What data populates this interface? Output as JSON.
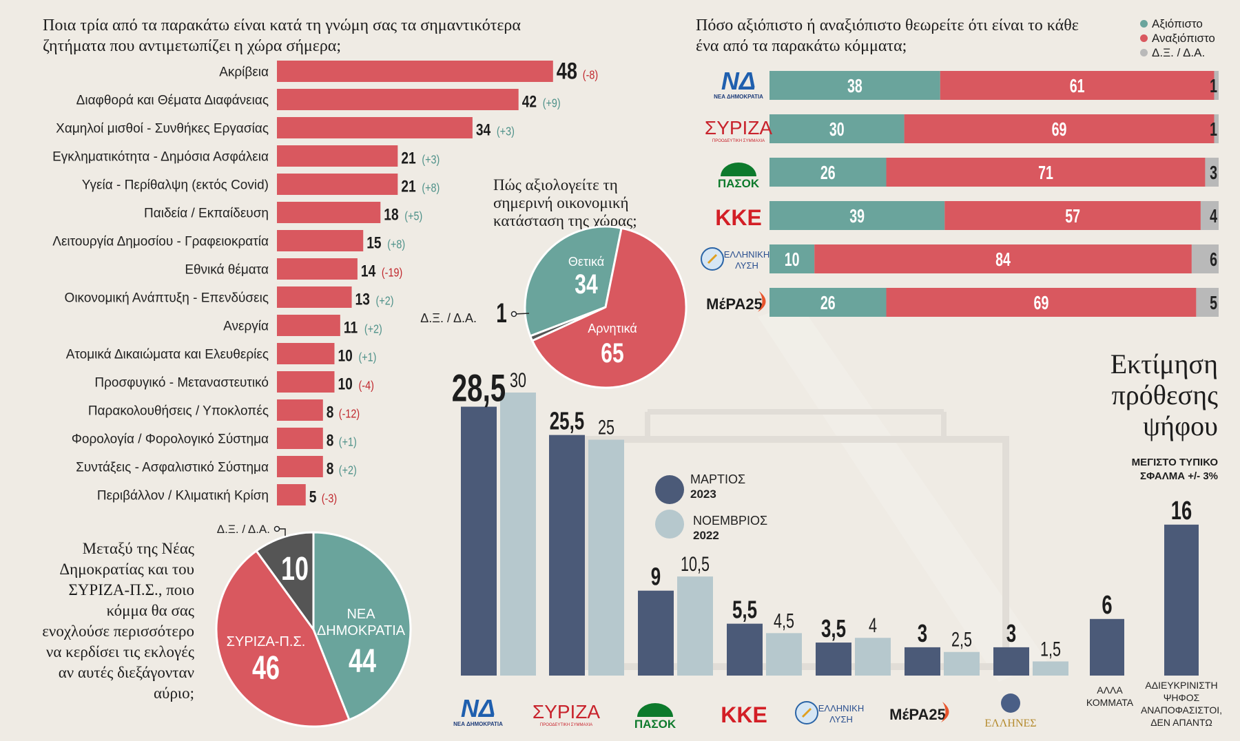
{
  "colors": {
    "red": "#d9585f",
    "teal": "#6aa49c",
    "grey": "#b9b9b9",
    "navy": "#4b5a78",
    "lightblue": "#b6c8cd",
    "dark": "#555555",
    "green_delta": "#4e9189",
    "red_delta": "#c0272d"
  },
  "issues": {
    "title": "Ποια τρία από τα παρακάτω είναι κατά τη γνώμη σας τα σημαντικότερα ζητήματα που αντιμετωπίζει η χώρα σήμερα;",
    "chart_data": {
      "type": "bar",
      "orientation": "horizontal",
      "categories": [
        "Ακρίβεια",
        "Διαφθορά και Θέματα Διαφάνειας",
        "Χαμηλοί μισθοί - Συνθήκες Εργασίας",
        "Εγκληματικότητα - Δημόσια Ασφάλεια",
        "Υγεία - Περίθαλψη (εκτός Covid)",
        "Παιδεία / Εκπαίδευση",
        "Λειτουργία Δημοσίου - Γραφειοκρατία",
        "Εθνικά θέματα",
        "Οικονομική Ανάπτυξη - Επενδύσεις",
        "Ανεργία",
        "Ατομικά Δικαιώματα και Ελευθερίες",
        "Προσφυγικό - Μεταναστευτικό",
        "Παρακολουθήσεις / Υποκλοπές",
        "Φορολογία / Φορολογικό Σύστημα",
        "Συντάξεις - Ασφαλιστικό Σύστημα",
        "Περιβάλλον / Κλιματική Κρίση"
      ],
      "values": [
        48,
        42,
        34,
        21,
        21,
        18,
        15,
        14,
        13,
        11,
        10,
        10,
        8,
        8,
        8,
        5
      ],
      "changes": [
        "(-8)",
        "(+9)",
        "(+3)",
        "(+3)",
        "(+8)",
        "(+5)",
        "(+8)",
        "(-19)",
        "(+2)",
        "(+2)",
        "(+1)",
        "(-4)",
        "(-12)",
        "(+1)",
        "(+2)",
        "(-3)"
      ]
    }
  },
  "trust": {
    "title": "Πόσο αξιόπιστο ή αναξιόπιστο θεωρείτε ότι είναι το κάθε ένα από τα παρακάτω κόμματα;",
    "legend": [
      "Αξιόπιστο",
      "Αναξιόπιστο",
      "Δ.Ξ. / Δ.Α."
    ],
    "chart_data": {
      "type": "bar",
      "stacked": true,
      "categories": [
        "ΝΔ",
        "ΣΥΡΙΖΑ",
        "ΠΑΣΟΚ",
        "ΚΚΕ",
        "ΕΛΛΗΝΙΚΗ ΛΥΣΗ",
        "ΜέΡΑ25"
      ],
      "series": [
        {
          "name": "Αξιόπιστο",
          "values": [
            38,
            30,
            26,
            39,
            10,
            26
          ]
        },
        {
          "name": "Αναξιόπιστο",
          "values": [
            61,
            69,
            71,
            57,
            84,
            69
          ]
        },
        {
          "name": "Δ.Ξ. / Δ.Α.",
          "values": [
            1,
            1,
            3,
            4,
            6,
            5
          ]
        }
      ]
    }
  },
  "economy": {
    "title": "Πώς αξιολογείτε τη σημερινή οικονομική κατάσταση της χώρας;",
    "chart_data": {
      "type": "pie",
      "labels": [
        "Θετικά",
        "Αρνητικά",
        "Δ.Ξ. / Δ.Α."
      ],
      "values": [
        34,
        65,
        1
      ]
    }
  },
  "bother": {
    "title": "Μεταξύ της Νέας Δημοκρατίας και του ΣΥΡΙΖΑ-Π.Σ., ποιο κόμμα θα σας ενοχλούσε περισσότερο να κερδίσει τις εκλογές αν αυτές διεξάγονταν αύριο;",
    "chart_data": {
      "type": "pie",
      "labels": [
        "ΝΕΑ ΔΗΜΟΚΡΑΤΙΑ",
        "ΣΥΡΙΖΑ-Π.Σ.",
        "Δ.Ξ. / Δ.Α."
      ],
      "values": [
        44,
        46,
        10
      ]
    }
  },
  "vote": {
    "title": "Εκτίμηση πρόθεσης ψήφου",
    "error_note": "ΜΕΓΙΣΤΟ ΤΥΠΙΚΟ ΣΦΑΛΜΑ +/- 3%",
    "legend": [
      {
        "label": "ΜΑΡΤΙΟΣ",
        "year": "2023"
      },
      {
        "label": "ΝΟΕΜΒΡΙΟΣ",
        "year": "2022"
      }
    ],
    "chart_data": {
      "type": "bar",
      "categories": [
        "ΝΔ",
        "ΣΥΡΙΖΑ",
        "ΠΑΣΟΚ",
        "ΚΚΕ",
        "ΕΛΛΗΝΙΚΗ ΛΥΣΗ",
        "ΜέΡΑ25",
        "ΕΛΛΗΝΕΣ",
        "ΑΛΛΑ ΚΟΜΜΑΤΑ",
        "ΑΔΙΕΥΚΡΙΝΙΣΤΗ ΨΗΦΟΣ ΑΝΑΠΟΦΑΣΙΣΤΟΙ, ΔΕΝ ΑΠΑΝΤΩ"
      ],
      "series": [
        {
          "name": "ΜΑΡΤΙΟΣ 2023",
          "values": [
            28.5,
            25.5,
            9,
            5.5,
            3.5,
            3,
            3,
            6,
            16
          ],
          "labels": [
            "28,5",
            "25,5",
            "9",
            "5,5",
            "3,5",
            "3",
            "3",
            "6",
            "16"
          ]
        },
        {
          "name": "ΝΟΕΜΒΡΙΟΣ 2022",
          "values": [
            30,
            25,
            10.5,
            4.5,
            4,
            2.5,
            1.5,
            null,
            null
          ],
          "labels": [
            "30",
            "25",
            "10,5",
            "4,5",
            "4",
            "2,5",
            "1,5",
            "",
            ""
          ]
        }
      ],
      "other_label": "ΑΛΛΑ ΚΟΜΜΑΤΑ",
      "undecided_label": [
        "ΑΔΙΕΥΚΡΙΝΙΣΤΗ",
        "ΨΗΦΟΣ",
        "ΑΝΑΠΟΦΑΣΙΣΤΟΙ,",
        "ΔΕΝ ΑΠΑΝΤΩ"
      ]
    }
  },
  "logos": {
    "nd": "ΝΔ",
    "nd_sub": "ΝΕΑ ΔΗΜΟΚΡΑΤΙΑ",
    "syriza": "ΣΥΡΙΖΑ",
    "syriza_sub": "ΠΡΟΟΔΕΥΤΙΚΗ ΣΥΜΜΑΧΙΑ",
    "pasok": "ΠΑΣΟΚ",
    "kke": "ΚΚΕ",
    "el1": "ΕΛΛΗΝΙΚΗ",
    "el2": "ΛΥΣΗ",
    "mera": "ΜέΡΑ25",
    "ellines": "ΕΛΛΗΝΕΣ"
  }
}
